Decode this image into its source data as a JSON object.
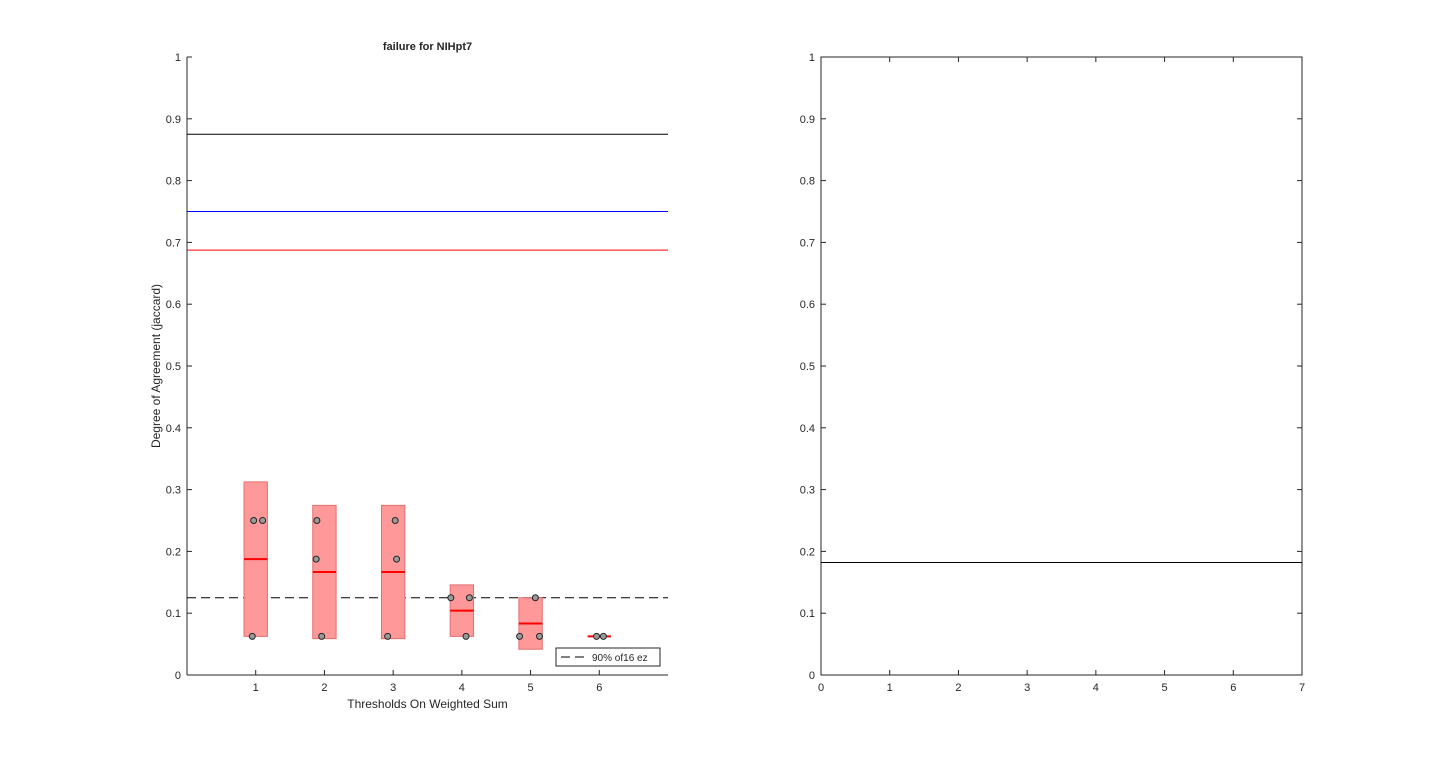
{
  "chart_data": [
    {
      "type": "box",
      "title": "failure for NIHpt7",
      "xlabel": "Thresholds On Weighted Sum",
      "ylabel": "Degree of Agreement (jaccard)",
      "xlim": [
        0,
        7
      ],
      "ylim": [
        0,
        1
      ],
      "xticks": [
        1,
        2,
        3,
        4,
        5,
        6
      ],
      "yticks": [
        0,
        0.1,
        0.2,
        0.3,
        0.4,
        0.5,
        0.6,
        0.7,
        0.8,
        0.9,
        1
      ],
      "reference_lines": [
        {
          "y": 0.875,
          "color": "#000000",
          "style": "solid"
        },
        {
          "y": 0.75,
          "color": "#0000ff",
          "style": "solid"
        },
        {
          "y": 0.6875,
          "color": "#ff0000",
          "style": "solid"
        },
        {
          "y": 0.125,
          "color": "#000000",
          "style": "dashed",
          "legend": "90% of16 ez"
        }
      ],
      "boxes": [
        {
          "x": 1,
          "low": 0.0625,
          "high": 0.3125,
          "median": 0.1875,
          "points": [
            {
              "x": 0.95,
              "y": 0.0625
            },
            {
              "x": 0.97,
              "y": 0.25
            },
            {
              "x": 1.1,
              "y": 0.25
            }
          ]
        },
        {
          "x": 2,
          "low": 0.0588,
          "high": 0.2745,
          "median": 0.1667,
          "points": [
            {
              "x": 1.89,
              "y": 0.25
            },
            {
              "x": 1.88,
              "y": 0.1875
            },
            {
              "x": 1.96,
              "y": 0.0625
            }
          ]
        },
        {
          "x": 3,
          "low": 0.0588,
          "high": 0.2745,
          "median": 0.1667,
          "points": [
            {
              "x": 3.03,
              "y": 0.25
            },
            {
              "x": 3.05,
              "y": 0.1875
            },
            {
              "x": 2.92,
              "y": 0.0625
            }
          ]
        },
        {
          "x": 4,
          "low": 0.0625,
          "high": 0.1458,
          "median": 0.1042,
          "points": [
            {
              "x": 3.84,
              "y": 0.125
            },
            {
              "x": 4.11,
              "y": 0.125
            },
            {
              "x": 4.06,
              "y": 0.0625
            }
          ]
        },
        {
          "x": 5,
          "low": 0.0417,
          "high": 0.125,
          "median": 0.0833,
          "points": [
            {
              "x": 5.07,
              "y": 0.125
            },
            {
              "x": 4.84,
              "y": 0.0625
            },
            {
              "x": 5.13,
              "y": 0.0625
            }
          ]
        },
        {
          "x": 6,
          "low": 0.0625,
          "high": 0.0625,
          "median": 0.0625,
          "points": [
            {
              "x": 5.96,
              "y": 0.0625
            },
            {
              "x": 6.06,
              "y": 0.0625
            }
          ]
        }
      ],
      "box_color": "#ff9999",
      "median_color": "#ff0000",
      "legend": {
        "placement": "bottom-right",
        "entries": [
          "90% of16 ez"
        ]
      }
    },
    {
      "type": "line",
      "xlim": [
        0,
        7
      ],
      "ylim": [
        0,
        1
      ],
      "xticks": [
        0,
        1,
        2,
        3,
        4,
        5,
        6,
        7
      ],
      "yticks": [
        0,
        0.1,
        0.2,
        0.3,
        0.4,
        0.5,
        0.6,
        0.7,
        0.8,
        0.9,
        1
      ],
      "reference_lines": [
        {
          "y": 0.182,
          "color": "#000000",
          "style": "solid"
        }
      ]
    }
  ]
}
